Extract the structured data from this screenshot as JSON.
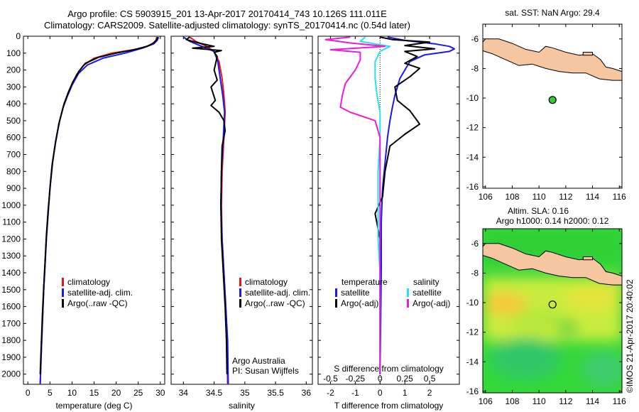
{
  "header": {
    "line1": "Argo profile: CS 5903915_201 13-Apr-2017 20170414_743 10.126S 111.011E",
    "line2": "Climatology: CARS2009. Satellite-adjusted climatology: synTS_20170414.nc (0.54d later)"
  },
  "colors": {
    "climatology": "#e8131c",
    "satellite": "#1a1ae6",
    "argo": "#000000",
    "satellite_salinity": "#26e0f0",
    "argo_salinity_adj": "#e81ed8",
    "land": "#f6c6a0",
    "argo_marker": "#36c836"
  },
  "chart_data": [
    {
      "type": "line",
      "panel": "temperature",
      "xlabel": "temperature (deg C)",
      "ylabel": "",
      "xlim": [
        -1,
        31
      ],
      "ylim": [
        2060,
        0
      ],
      "xticks": [
        0,
        5,
        10,
        15,
        20,
        25,
        30
      ],
      "yticks": [
        0,
        100,
        200,
        300,
        400,
        500,
        600,
        700,
        800,
        900,
        1000,
        1100,
        1200,
        1300,
        1400,
        1500,
        1600,
        1700,
        1800,
        1900,
        2000
      ],
      "legend": [
        "climatology",
        "satellite-adj. clim.",
        "Argo(..raw -QC)"
      ],
      "series": [
        {
          "name": "climatology",
          "color": "#e8131c",
          "points": [
            [
              29.2,
              5
            ],
            [
              29.0,
              25
            ],
            [
              28.0,
              50
            ],
            [
              25.0,
              75
            ],
            [
              19,
              100
            ],
            [
              15,
              130
            ],
            [
              12.5,
              175
            ],
            [
              11,
              230
            ],
            [
              10,
              290
            ],
            [
              9,
              350
            ],
            [
              8,
              420
            ],
            [
              7,
              520
            ],
            [
              6.2,
              640
            ],
            [
              5.5,
              760
            ],
            [
              5,
              900
            ],
            [
              4.6,
              1050
            ],
            [
              4.2,
              1200
            ],
            [
              3.9,
              1350
            ],
            [
              3.6,
              1500
            ],
            [
              3.3,
              1700
            ],
            [
              3,
              1900
            ],
            [
              2.8,
              2060
            ]
          ]
        },
        {
          "name": "satellite-adj. clim.",
          "color": "#1a1ae6",
          "points": [
            [
              29.6,
              5
            ],
            [
              29.3,
              25
            ],
            [
              28.5,
              45
            ],
            [
              26,
              70
            ],
            [
              22,
              100
            ],
            [
              17,
              130
            ],
            [
              13.5,
              170
            ],
            [
              11.5,
              220
            ],
            [
              10,
              290
            ],
            [
              9,
              350
            ],
            [
              8,
              420
            ],
            [
              7,
              520
            ],
            [
              6.2,
              640
            ],
            [
              5.5,
              760
            ],
            [
              5,
              900
            ],
            [
              4.6,
              1050
            ],
            [
              4.2,
              1200
            ],
            [
              3.9,
              1350
            ],
            [
              3.6,
              1500
            ],
            [
              3.3,
              1700
            ],
            [
              3,
              1900
            ],
            [
              2.8,
              2060
            ]
          ]
        },
        {
          "name": "Argo(..raw -QC)",
          "color": "#000000",
          "points": [
            [
              29.4,
              5
            ],
            [
              29.2,
              20
            ],
            [
              28.5,
              40
            ],
            [
              27,
              60
            ],
            [
              24,
              80
            ],
            [
              20,
              100
            ],
            [
              16,
              125
            ],
            [
              13,
              160
            ],
            [
              11.5,
              210
            ],
            [
              10.2,
              270
            ],
            [
              9.2,
              330
            ],
            [
              8.2,
              400
            ],
            [
              7.2,
              500
            ],
            [
              6.3,
              620
            ],
            [
              5.6,
              750
            ],
            [
              5.1,
              880
            ],
            [
              4.6,
              1030
            ],
            [
              4.2,
              1180
            ],
            [
              3.9,
              1330
            ],
            [
              3.6,
              1480
            ],
            [
              3.3,
              1650
            ],
            [
              3,
              1850
            ],
            [
              2.8,
              2000
            ]
          ]
        }
      ]
    },
    {
      "type": "line",
      "panel": "salinity",
      "xlabel": "salinity",
      "ylabel": "",
      "xlim": [
        33.8,
        36.1
      ],
      "ylim": [
        2060,
        0
      ],
      "xticks": [
        34,
        34.5,
        35,
        35.5,
        36
      ],
      "xticklabels": [
        "34",
        "34.5",
        "35",
        "35.5",
        "36"
      ],
      "legend": [
        "climatology",
        "satellite-adj. clim.",
        "Argo(..raw -QC)"
      ],
      "series": [
        {
          "name": "climatology",
          "color": "#e8131c",
          "points": [
            [
              34.1,
              5
            ],
            [
              34.2,
              30
            ],
            [
              34.38,
              60
            ],
            [
              34.5,
              90
            ],
            [
              34.58,
              150
            ],
            [
              34.63,
              250
            ],
            [
              34.66,
              350
            ],
            [
              34.68,
              450
            ],
            [
              34.66,
              600
            ],
            [
              34.63,
              800
            ],
            [
              34.62,
              1000
            ],
            [
              34.63,
              1200
            ],
            [
              34.66,
              1400
            ],
            [
              34.69,
              1600
            ],
            [
              34.71,
              1800
            ],
            [
              34.72,
              2060
            ]
          ]
        },
        {
          "name": "satellite-adj. clim.",
          "color": "#1a1ae6",
          "points": [
            [
              34.0,
              5
            ],
            [
              34.1,
              30
            ],
            [
              34.3,
              60
            ],
            [
              34.5,
              90
            ],
            [
              34.56,
              150
            ],
            [
              34.6,
              250
            ],
            [
              34.64,
              350
            ],
            [
              34.67,
              450
            ],
            [
              34.65,
              600
            ],
            [
              34.62,
              800
            ],
            [
              34.61,
              1000
            ],
            [
              34.63,
              1200
            ],
            [
              34.66,
              1400
            ],
            [
              34.69,
              1600
            ],
            [
              34.72,
              1800
            ],
            [
              34.73,
              2060
            ]
          ]
        },
        {
          "name": "Argo(..raw -QC)",
          "color": "#000000",
          "points": [
            [
              34.1,
              5
            ],
            [
              34.05,
              20
            ],
            [
              34.25,
              40
            ],
            [
              34.5,
              60
            ],
            [
              34.15,
              70
            ],
            [
              34.62,
              85
            ],
            [
              34.5,
              95
            ],
            [
              34.55,
              120
            ],
            [
              34.5,
              200
            ],
            [
              34.55,
              260
            ],
            [
              34.45,
              300
            ],
            [
              34.52,
              380
            ],
            [
              34.45,
              410
            ],
            [
              34.58,
              450
            ],
            [
              34.66,
              500
            ],
            [
              34.68,
              560
            ],
            [
              34.63,
              650
            ],
            [
              34.62,
              800
            ],
            [
              34.61,
              1000
            ],
            [
              34.62,
              1200
            ],
            [
              34.65,
              1400
            ],
            [
              34.68,
              1600
            ],
            [
              34.7,
              1800
            ],
            [
              34.71,
              2000
            ]
          ]
        }
      ]
    },
    {
      "type": "line",
      "panel": "difference",
      "xlabel": "T difference from climatology",
      "xlabel_top": "S difference from climatology",
      "ylabel": "",
      "xlim": [
        -2.5,
        3.2
      ],
      "ylim": [
        2060,
        0
      ],
      "xticks": [
        -2,
        -1,
        0,
        1,
        2
      ],
      "sticks": [
        -0.5,
        -0.25,
        0,
        0.25,
        0.5
      ],
      "legend_temperature": [
        "temperature",
        "satellite",
        "Argo(-adj)"
      ],
      "legend_salinity": [
        "salinity",
        "satellite",
        "Argo(-adj)"
      ],
      "series": [
        {
          "name": "temperature satellite",
          "color": "#1a1ae6",
          "points": [
            [
              0.3,
              5
            ],
            [
              1.0,
              25
            ],
            [
              2.2,
              45
            ],
            [
              2.8,
              60
            ],
            [
              3.0,
              75
            ],
            [
              2.8,
              90
            ],
            [
              1.8,
              110
            ],
            [
              1.2,
              150
            ],
            [
              0.8,
              250
            ],
            [
              0.6,
              350
            ],
            [
              0.5,
              420
            ],
            [
              0.4,
              500
            ],
            [
              0.3,
              600
            ],
            [
              0.2,
              750
            ],
            [
              0.1,
              900
            ],
            [
              0.05,
              1100
            ],
            [
              0.05,
              1400
            ],
            [
              0,
              2000
            ]
          ]
        },
        {
          "name": "temperature Argo(-adj)",
          "color": "#000000",
          "points": [
            [
              0,
              5
            ],
            [
              0.5,
              20
            ],
            [
              2.0,
              35
            ],
            [
              1.0,
              55
            ],
            [
              2.2,
              75
            ],
            [
              1.0,
              90
            ],
            [
              1.5,
              120
            ],
            [
              1.0,
              160
            ],
            [
              1.6,
              190
            ],
            [
              1.2,
              240
            ],
            [
              0.6,
              300
            ],
            [
              0.7,
              380
            ],
            [
              1.2,
              440
            ],
            [
              1.6,
              520
            ],
            [
              1.0,
              580
            ],
            [
              0.4,
              650
            ],
            [
              0.2,
              800
            ],
            [
              0.1,
              950
            ],
            [
              -0.2,
              1050
            ],
            [
              0,
              1200
            ],
            [
              0,
              1400
            ],
            [
              0,
              1700
            ],
            [
              0,
              2000
            ]
          ]
        },
        {
          "name": "salinity satellite",
          "color": "#26e0f0",
          "points": [
            [
              -0.15,
              5
            ],
            [
              -0.2,
              30
            ],
            [
              0.1,
              60
            ],
            [
              0.0,
              90
            ],
            [
              -0.05,
              150
            ],
            [
              -0.05,
              250
            ],
            [
              -0.03,
              350
            ],
            [
              0,
              450
            ],
            [
              0,
              600
            ],
            [
              -0.02,
              800
            ],
            [
              -0.02,
              1000
            ],
            [
              -0.02,
              1200
            ],
            [
              0,
              1400
            ],
            [
              0,
              1700
            ],
            [
              0,
              2000
            ]
          ]
        },
        {
          "name": "salinity Argo(-adj)",
          "color": "#e81ed8",
          "points": [
            [
              -0.3,
              5
            ],
            [
              -0.55,
              20
            ],
            [
              -0.3,
              40
            ],
            [
              0.05,
              60
            ],
            [
              -0.5,
              80
            ],
            [
              -0.2,
              95
            ],
            [
              -0.2,
              140
            ],
            [
              -0.25,
              200
            ],
            [
              -0.35,
              280
            ],
            [
              -0.38,
              350
            ],
            [
              -0.4,
              420
            ],
            [
              -0.3,
              450
            ],
            [
              -0.05,
              500
            ],
            [
              0,
              600
            ],
            [
              0,
              800
            ],
            [
              0,
              1000
            ],
            [
              0,
              1200
            ],
            [
              0,
              1400
            ],
            [
              0,
              1700
            ],
            [
              0,
              2000
            ]
          ]
        }
      ],
      "annotation": [
        "Argo Australia",
        "PI: Susan Wijffels"
      ]
    },
    {
      "type": "heatmap",
      "panel": "sst-map",
      "title": "sat. SST: NaN Argo: 29.4",
      "xlim": [
        105.8,
        116.2
      ],
      "ylim": [
        -16.1,
        -5
      ],
      "xticks": [
        106,
        108,
        110,
        112,
        114,
        116
      ],
      "yticks": [
        -6,
        -8,
        -10,
        -12,
        -14,
        -16
      ],
      "argo_position": [
        111.011,
        -10.126
      ]
    },
    {
      "type": "heatmap",
      "panel": "sla-map",
      "title_line1": "Altim. SLA: 0.16",
      "title_line2": "Argo h1000: 0.14 h2000: 0.12",
      "xlim": [
        105.8,
        116.2
      ],
      "ylim": [
        -16.1,
        -5
      ],
      "xticks": [
        106,
        108,
        110,
        112,
        114,
        116
      ],
      "yticks": [
        -6,
        -8,
        -10,
        -12,
        -14,
        -16
      ],
      "argo_position": [
        111.011,
        -10.126
      ]
    }
  ],
  "credit": "©IMOS 21-Apr-2017 20:40:02"
}
